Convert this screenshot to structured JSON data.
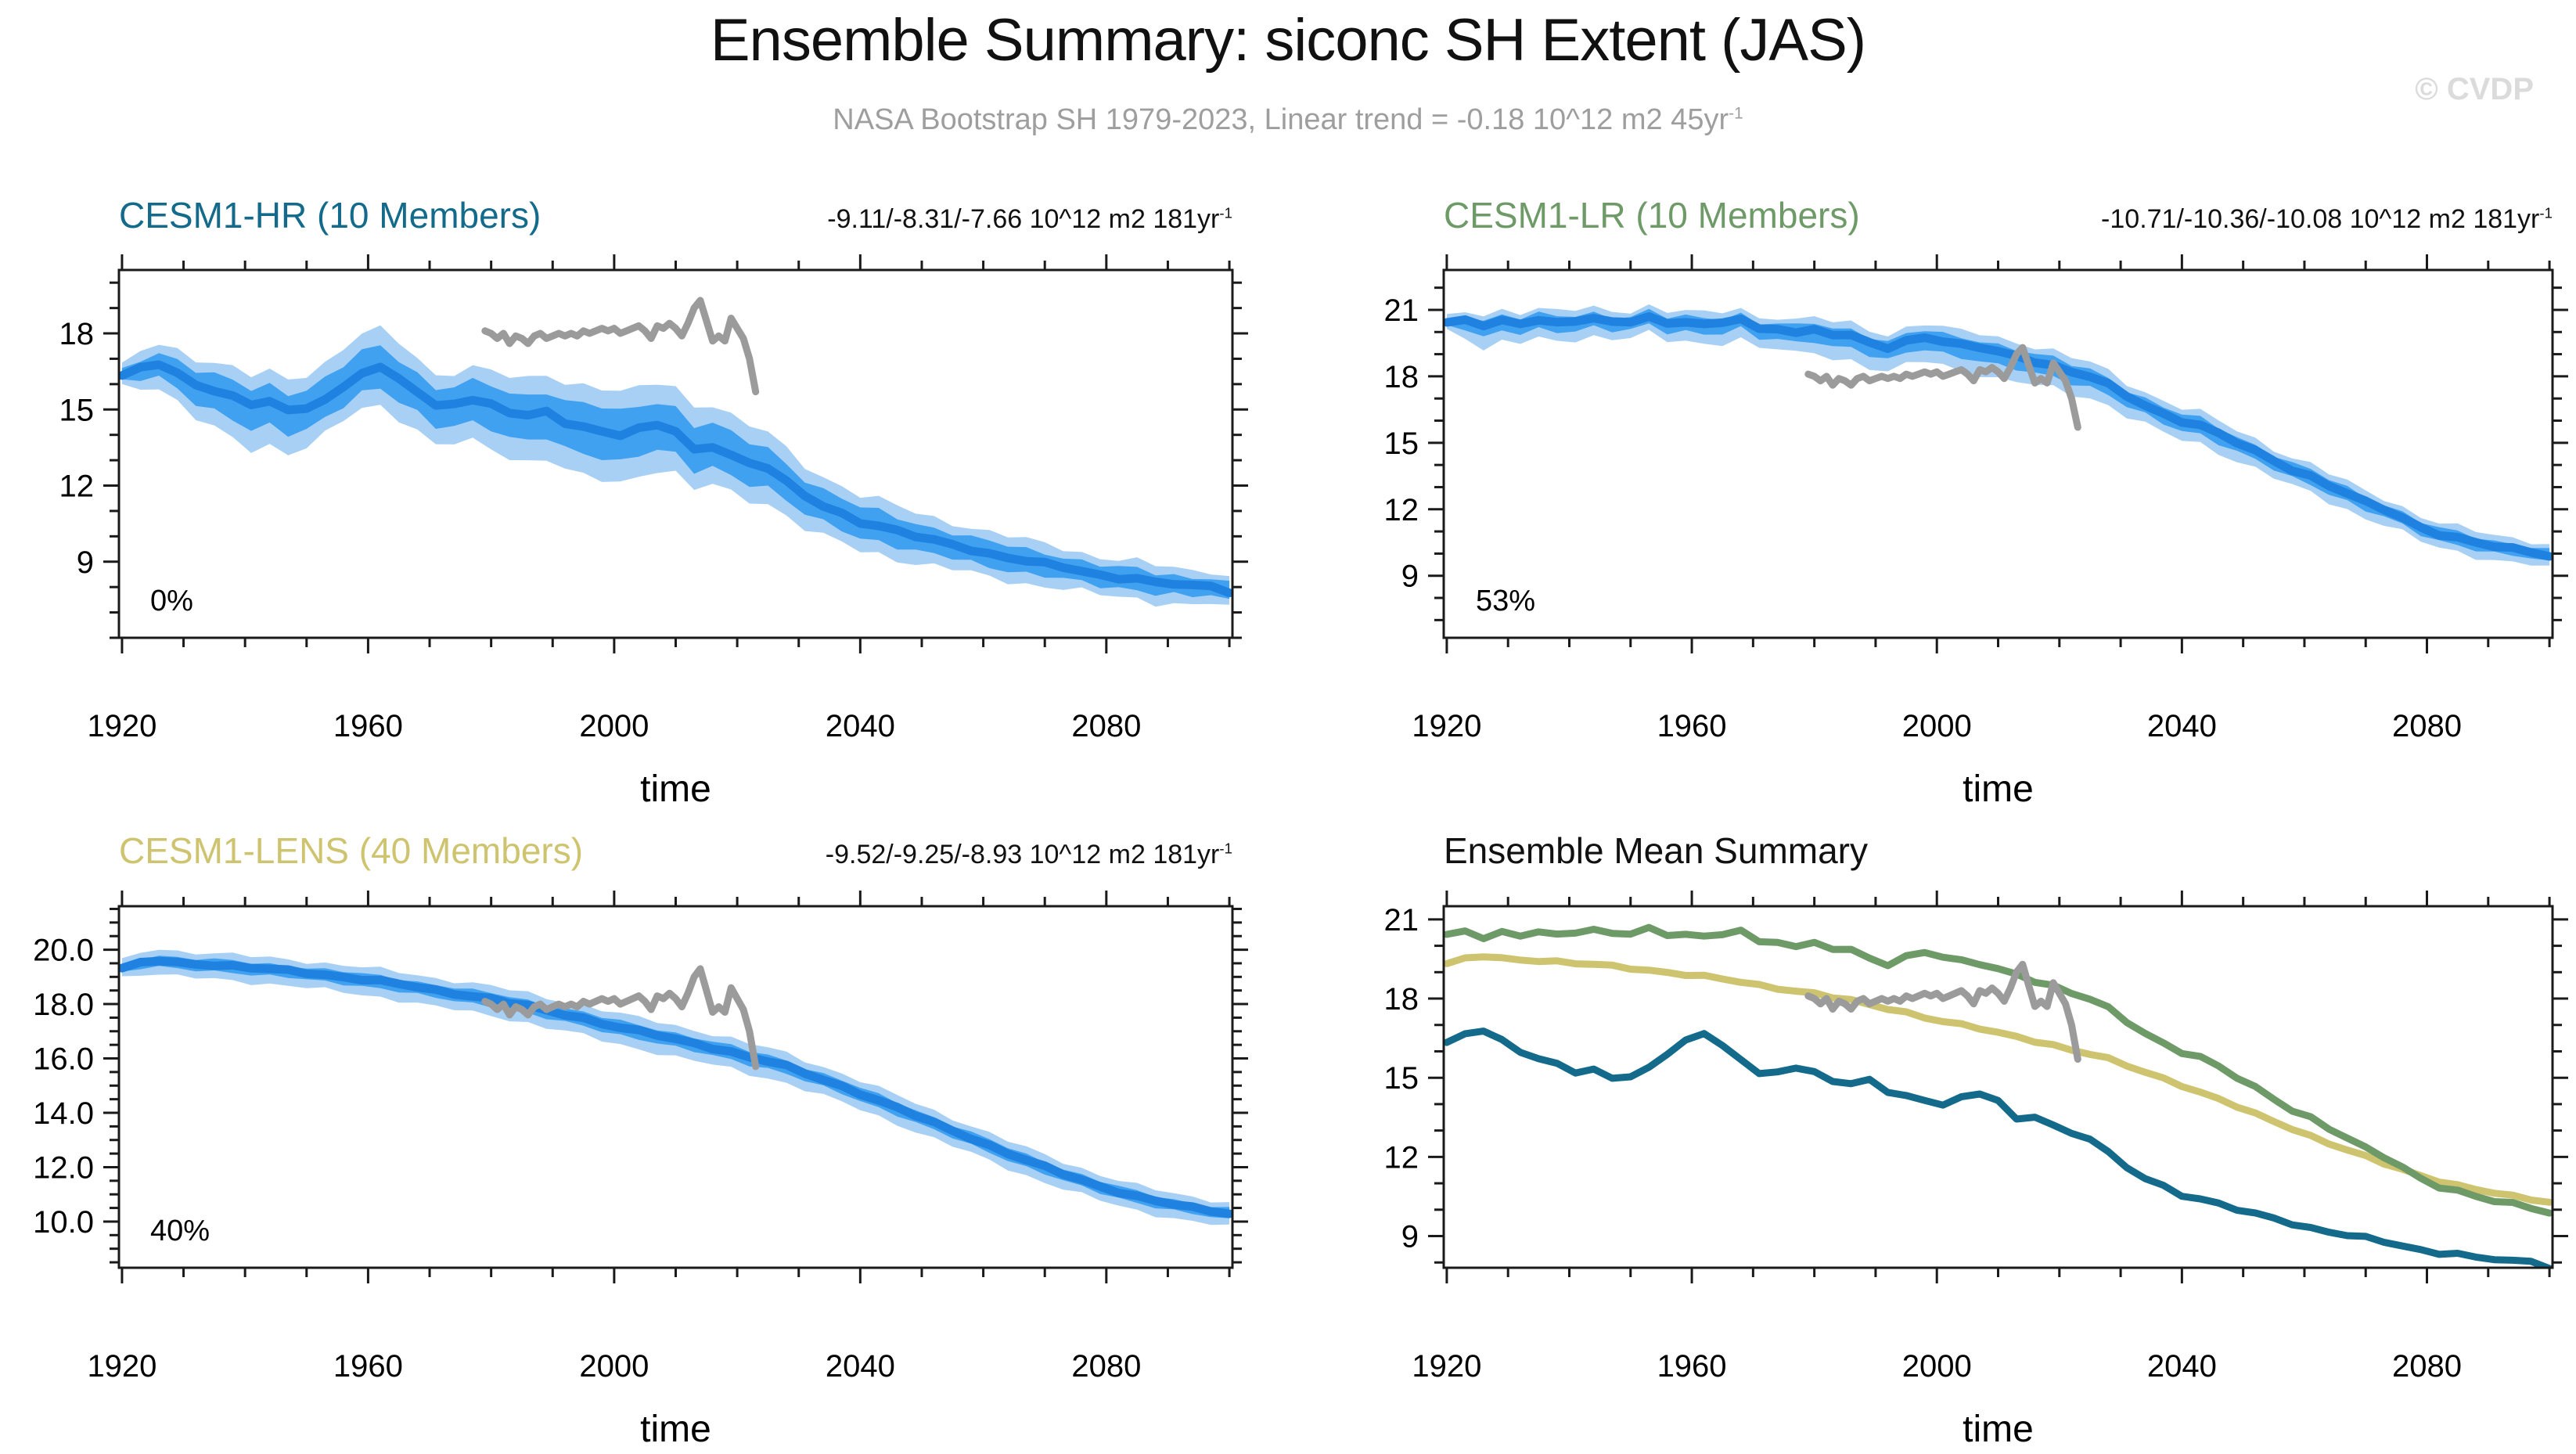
{
  "header": {
    "title": "Ensemble Summary: siconc SH Extent (JAS)",
    "subtitle": "NASA Bootstrap SH 1979-2023, Linear trend = -0.18 10^12 m2 45yr",
    "subtitle_sup": "-1",
    "watermark": "© CVDP"
  },
  "colors": {
    "hr": "#136A8A",
    "lr": "#6E9A68",
    "lens": "#CEC46F",
    "obs": "#9B9B9B",
    "ens_mean": "#1F82E0",
    "band_inner": "#3FA1F0",
    "band_outer": "#A8D0F5",
    "frame": "#1A1A1A",
    "summary_title": "#111111"
  },
  "x_axis": {
    "label": "time",
    "range": [
      1919.5,
      2100.5
    ],
    "ticks": [
      1920,
      1960,
      2000,
      2040,
      2080
    ],
    "tick_labels": [
      "1920",
      "1960",
      "2000",
      "2040",
      "2080"
    ],
    "minor_step": 10
  },
  "obs": {
    "label": "NASA Bootstrap SH 1979-2023",
    "x_start": 1979,
    "x_step": 1,
    "values": [
      18.1,
      18.0,
      17.8,
      18.0,
      17.6,
      17.9,
      17.8,
      17.6,
      17.9,
      18.0,
      17.8,
      17.9,
      18.0,
      17.9,
      18.0,
      17.9,
      18.1,
      18.0,
      18.1,
      18.2,
      18.1,
      18.2,
      18.0,
      18.1,
      18.2,
      18.3,
      18.1,
      17.8,
      18.3,
      18.2,
      18.4,
      18.2,
      17.9,
      18.4,
      19.0,
      19.3,
      18.5,
      17.7,
      17.9,
      17.7,
      18.6,
      18.2,
      17.8,
      17.0,
      15.7
    ]
  },
  "chart_data": [
    {
      "id": "hr",
      "type": "area",
      "title": "CESM1-HR (10 Members)",
      "trend": "-9.11/-8.31/-7.66 10^12 m2 181yr",
      "trend_sup": "-1",
      "agreement": "0%",
      "ylim": [
        6.0,
        20.5
      ],
      "yticks": [
        9,
        12,
        15,
        18
      ],
      "ytick_labels": [
        "9",
        "12",
        "15",
        "18"
      ],
      "y_minor_step": 1,
      "x_start": 1920,
      "x_step": 3,
      "mean": [
        16.3,
        16.6,
        16.8,
        16.4,
        16.0,
        15.8,
        15.5,
        15.2,
        15.3,
        14.9,
        15.1,
        15.4,
        15.9,
        16.5,
        16.6,
        16.2,
        15.7,
        15.1,
        15.3,
        15.4,
        15.2,
        14.9,
        14.7,
        14.9,
        14.5,
        14.3,
        14.2,
        14.0,
        14.2,
        14.4,
        14.1,
        13.4,
        13.6,
        13.2,
        12.9,
        12.7,
        12.1,
        11.6,
        11.2,
        10.9,
        10.6,
        10.4,
        10.2,
        10.0,
        9.8,
        9.7,
        9.5,
        9.3,
        9.2,
        9.0,
        8.9,
        8.8,
        8.6,
        8.5,
        8.4,
        8.3,
        8.2,
        8.1,
        8.0,
        8.1,
        7.8
      ],
      "mean_jitter": 0.1,
      "band_outer": [
        [
          1920,
          0.35,
          0.35
        ],
        [
          1924,
          0.8,
          0.8
        ],
        [
          1930,
          1.0,
          1.3
        ],
        [
          1940,
          1.1,
          1.7
        ],
        [
          1948,
          1.3,
          1.7
        ],
        [
          1956,
          1.5,
          1.3
        ],
        [
          1964,
          1.5,
          1.5
        ],
        [
          1972,
          1.2,
          1.6
        ],
        [
          1980,
          1.3,
          1.7
        ],
        [
          1988,
          1.5,
          1.8
        ],
        [
          1996,
          1.7,
          2.0
        ],
        [
          2004,
          1.6,
          1.8
        ],
        [
          2012,
          1.8,
          1.6
        ],
        [
          2020,
          1.5,
          1.5
        ],
        [
          2028,
          1.3,
          1.3
        ],
        [
          2036,
          1.1,
          1.2
        ],
        [
          2044,
          1.0,
          1.1
        ],
        [
          2052,
          0.9,
          1.0
        ],
        [
          2060,
          0.85,
          0.95
        ],
        [
          2070,
          0.8,
          0.85
        ],
        [
          2080,
          0.7,
          0.8
        ],
        [
          2090,
          0.65,
          0.75
        ],
        [
          2100,
          0.6,
          0.7
        ]
      ],
      "inner_frac": 0.55,
      "jitter": 0.22
    },
    {
      "id": "lr",
      "type": "area",
      "title": "CESM1-LR (10 Members)",
      "trend": "-10.71/-10.36/-10.08 10^12 m2 181yr",
      "trend_sup": "-1",
      "agreement": "53%",
      "ylim": [
        6.2,
        22.8
      ],
      "yticks": [
        9,
        12,
        15,
        18,
        21
      ],
      "ytick_labels": [
        "9",
        "12",
        "15",
        "18",
        "21"
      ],
      "y_minor_step": 1,
      "x_start": 1920,
      "x_step": 3,
      "mean": [
        20.4,
        20.5,
        20.3,
        20.5,
        20.4,
        20.6,
        20.4,
        20.5,
        20.6,
        20.4,
        20.5,
        20.7,
        20.4,
        20.5,
        20.3,
        20.4,
        20.6,
        20.1,
        20.2,
        20.0,
        20.1,
        19.9,
        19.8,
        19.5,
        19.3,
        19.6,
        19.8,
        19.6,
        19.4,
        19.3,
        19.1,
        18.9,
        18.7,
        18.5,
        18.2,
        18.0,
        17.6,
        17.1,
        16.7,
        16.3,
        16.0,
        15.8,
        15.4,
        15.0,
        14.6,
        14.2,
        13.8,
        13.5,
        13.1,
        12.7,
        12.3,
        12.0,
        11.6,
        11.2,
        10.9,
        10.7,
        10.5,
        10.3,
        10.2,
        10.1,
        9.9
      ],
      "mean_jitter": 0.09,
      "band_outer": [
        [
          1920,
          0.25,
          0.3
        ],
        [
          1926,
          0.5,
          1.1
        ],
        [
          1932,
          0.5,
          0.9
        ],
        [
          1940,
          0.5,
          0.8
        ],
        [
          1950,
          0.5,
          0.75
        ],
        [
          1960,
          0.5,
          0.85
        ],
        [
          1970,
          0.5,
          0.9
        ],
        [
          1980,
          0.55,
          1.0
        ],
        [
          1990,
          0.6,
          1.15
        ],
        [
          2000,
          0.6,
          1.05
        ],
        [
          2010,
          0.65,
          1.25
        ],
        [
          2020,
          0.65,
          1.0
        ],
        [
          2030,
          0.6,
          0.9
        ],
        [
          2040,
          0.6,
          0.85
        ],
        [
          2050,
          0.55,
          0.8
        ],
        [
          2060,
          0.55,
          0.75
        ],
        [
          2070,
          0.5,
          0.7
        ],
        [
          2080,
          0.5,
          0.65
        ],
        [
          2090,
          0.5,
          0.6
        ],
        [
          2100,
          0.5,
          0.6
        ]
      ],
      "inner_frac": 0.5,
      "jitter": 0.18
    },
    {
      "id": "lens",
      "type": "area",
      "title": "CESM1-LENS (40 Members)",
      "trend": "-9.52/-9.25/-8.93 10^12 m2 181yr",
      "trend_sup": "-1",
      "agreement": "40%",
      "ylim": [
        8.3,
        21.6
      ],
      "yticks": [
        10,
        12,
        14,
        16,
        18,
        20
      ],
      "ytick_labels": [
        "10.0",
        "12.0",
        "14.0",
        "16.0",
        "18.0",
        "20.0"
      ],
      "y_minor_step": 0.5,
      "x_start": 1920,
      "x_step": 3,
      "mean": [
        19.3,
        19.5,
        19.6,
        19.52,
        19.48,
        19.45,
        19.4,
        19.33,
        19.28,
        19.22,
        19.15,
        19.08,
        19.0,
        18.92,
        18.84,
        18.73,
        18.62,
        18.5,
        18.4,
        18.3,
        18.2,
        18.05,
        17.92,
        17.75,
        17.62,
        17.48,
        17.3,
        17.15,
        17.0,
        16.85,
        16.7,
        16.55,
        16.4,
        16.25,
        16.05,
        15.9,
        15.7,
        15.45,
        15.22,
        14.98,
        14.72,
        14.45,
        14.18,
        13.9,
        13.62,
        13.35,
        13.08,
        12.8,
        12.52,
        12.25,
        12.0,
        11.75,
        11.52,
        11.3,
        11.1,
        10.92,
        10.76,
        10.62,
        10.5,
        10.4,
        10.3
      ],
      "mean_jitter": 0.06,
      "band_outer": [
        [
          1920,
          0.3,
          0.3
        ],
        [
          1926,
          0.45,
          0.5
        ],
        [
          1930,
          0.42,
          0.52
        ],
        [
          1950,
          0.42,
          0.55
        ],
        [
          1970,
          0.45,
          0.6
        ],
        [
          1990,
          0.48,
          0.62
        ],
        [
          2010,
          0.5,
          0.65
        ],
        [
          2030,
          0.48,
          0.6
        ],
        [
          2050,
          0.45,
          0.58
        ],
        [
          2070,
          0.45,
          0.55
        ],
        [
          2090,
          0.4,
          0.5
        ],
        [
          2100,
          0.4,
          0.5
        ]
      ],
      "inner_frac": 0.45,
      "jitter": 0.1
    },
    {
      "id": "summary",
      "type": "line",
      "title": "Ensemble Mean Summary",
      "ylim": [
        7.8,
        21.5
      ],
      "yticks": [
        9,
        12,
        15,
        18,
        21
      ],
      "ytick_labels": [
        "9",
        "12",
        "15",
        "18",
        "21"
      ],
      "y_minor_step": 1,
      "series": [
        "lens",
        "lr",
        "hr"
      ],
      "include_obs": true
    }
  ]
}
